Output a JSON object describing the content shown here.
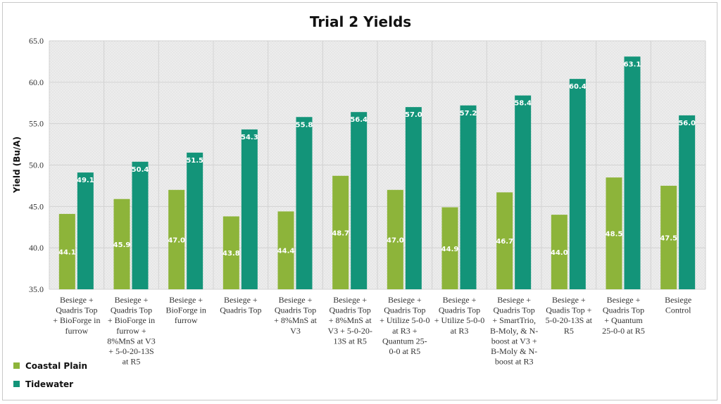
{
  "chart_data": {
    "type": "bar",
    "title": "Trial 2 Yields",
    "xlabel": "",
    "ylabel": "Yield (Bu/A)",
    "ylim": [
      35.0,
      65.0
    ],
    "yticks": [
      "35.0",
      "40.0",
      "45.0",
      "50.0",
      "55.0",
      "60.0",
      "65.0"
    ],
    "grid": true,
    "legend_position": "bottom-left",
    "categories": [
      [
        "Besiege +",
        "Quadris Top",
        "+ BioForge in",
        "furrow"
      ],
      [
        "Besiege +",
        "Quadris Top",
        "+ BioForge in",
        "furrow +",
        "8%MnS at V3",
        "+ 5-0-20-13S",
        "at R5"
      ],
      [
        "Besiege +",
        "BioForge in",
        "furrow"
      ],
      [
        "Besiege +",
        "Quadris Top"
      ],
      [
        "Besiege +",
        "Quadris Top",
        "+ 8%MnS at",
        "V3"
      ],
      [
        "Besiege +",
        "Quadris Top",
        "+ 8%MnS at",
        "V3 + 5-0-20-",
        "13S at R5"
      ],
      [
        "Besiege +",
        "Quadris Top",
        "+ Utilize 5-0-0",
        "at R3 +",
        "Quantum 25-",
        "0-0 at R5"
      ],
      [
        "Besiege +",
        "Quadris Top",
        "+ Utilize 5-0-0",
        "at R3"
      ],
      [
        "Besiege +",
        "Quadris Top",
        "+ SmartTrio,",
        "B-Moly, & N-",
        "boost at V3 +",
        "B-Moly & N-",
        "boost at R3"
      ],
      [
        "Besiege +",
        "Quadis Top +",
        "5-0-20-13S at",
        "R5"
      ],
      [
        "Besiege +",
        "Quadris Top",
        "+ Quantum",
        "25-0-0 at R5"
      ],
      [
        "Besiege",
        "Control"
      ]
    ],
    "series": [
      {
        "name": "Coastal Plain",
        "color": "#8db43a",
        "values": [
          44.1,
          45.9,
          47.0,
          43.8,
          44.4,
          48.7,
          47.0,
          44.9,
          46.7,
          44.0,
          48.5,
          47.5
        ],
        "labels": [
          "44.1",
          "45.9",
          "47.0",
          "43.8",
          "44.4",
          "48.7",
          "47.0",
          "44.9",
          "46.7",
          "44.0",
          "48.5",
          "47.5"
        ]
      },
      {
        "name": "Tidewater",
        "color": "#139479",
        "values": [
          49.1,
          50.4,
          51.5,
          54.3,
          55.8,
          56.4,
          57.0,
          57.2,
          58.4,
          60.4,
          63.1,
          56.0
        ],
        "labels": [
          "49.1",
          "50.4",
          "51.5",
          "54.3",
          "55.8",
          "56.4",
          "57.0",
          "57.2",
          "58.4",
          "60.4",
          "63.1",
          "56.0"
        ]
      }
    ]
  }
}
